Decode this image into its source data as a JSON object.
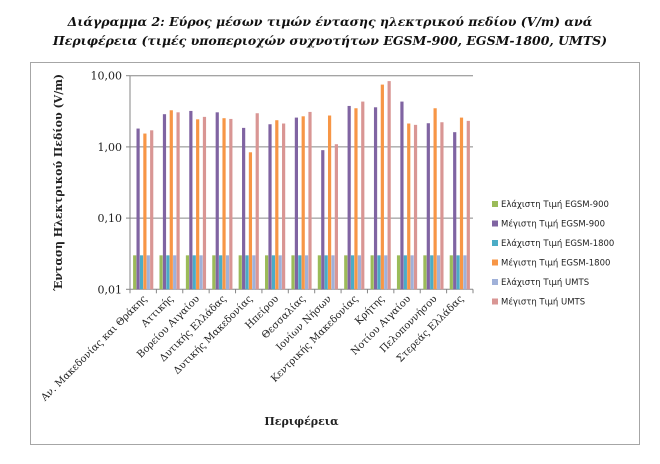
{
  "title_line1": "Διάγραμμα 2: Εύρος μέσων τιμών έντασης ηλεκτρικού πεδίου (V/m) ανά",
  "title_line2": "Περιφέρεια (τιμές υποπεριοχών συχνοτήτων EGSM-900, EGSM-1800, UMTS)",
  "chart_data": {
    "type": "bar",
    "xlabel": "Περιφέρεια",
    "ylabel": "Ένταση Ηλεκτρικού Πεδίου (V/m)",
    "yscale": "log",
    "ylim": [
      0.01,
      10
    ],
    "yticks": [
      "0,01",
      "0,10",
      "1,00",
      "10,00"
    ],
    "grid": true,
    "legend_position": "right",
    "categories": [
      "Αν. Μακεδονίας και Θράκης",
      "Αττικής",
      "Βορείου Αιγαίου",
      "Δυτικής Ελλάδας",
      "Δυτικής Μακεδονίας",
      "Ηπείρου",
      "Θεσσαλίας",
      "Ιονίων Νήσων",
      "Κεντρικής Μακεδονίας",
      "Κρήτης",
      "Νοτίου Αιγαίου",
      "Πελοποννήσου",
      "Στερεάς Ελλάδας"
    ],
    "series": [
      {
        "name": "Ελάχιστη Τιμή EGSM-900",
        "color": "#9BBB59",
        "values": [
          0.03,
          0.03,
          0.03,
          0.03,
          0.03,
          0.03,
          0.03,
          0.03,
          0.03,
          0.03,
          0.03,
          0.03,
          0.03
        ]
      },
      {
        "name": "Μέγιστη Τιμή EGSM-900",
        "color": "#8064A2",
        "values": [
          1.81,
          2.88,
          3.2,
          3.06,
          1.85,
          2.08,
          2.58,
          0.9,
          3.76,
          3.6,
          4.33,
          2.15,
          1.61
        ]
      },
      {
        "name": "Ελάχιστη Τιμή EGSM-1800",
        "color": "#4BACC6",
        "values": [
          0.03,
          0.03,
          0.03,
          0.03,
          0.03,
          0.03,
          0.03,
          0.03,
          0.03,
          0.03,
          0.03,
          0.03,
          0.03
        ]
      },
      {
        "name": "Μέγιστη Τιμή EGSM-1800",
        "color": "#F79646",
        "values": [
          1.54,
          3.27,
          2.44,
          2.53,
          0.84,
          2.37,
          2.69,
          2.76,
          3.49,
          7.5,
          2.13,
          3.49,
          2.58
        ]
      },
      {
        "name": "Ελάχιστη Τιμή UMTS",
        "color": "#A0B1D9",
        "values": [
          0.03,
          0.03,
          0.03,
          0.03,
          0.03,
          0.03,
          0.03,
          0.03,
          0.03,
          0.03,
          0.03,
          0.03,
          0.03
        ]
      },
      {
        "name": "Μέγιστη Τιμή UMTS",
        "color": "#D99694",
        "values": [
          1.71,
          3.06,
          2.64,
          2.47,
          2.97,
          2.13,
          3.1,
          1.09,
          4.33,
          8.4,
          2.04,
          2.22,
          2.32
        ]
      }
    ]
  }
}
